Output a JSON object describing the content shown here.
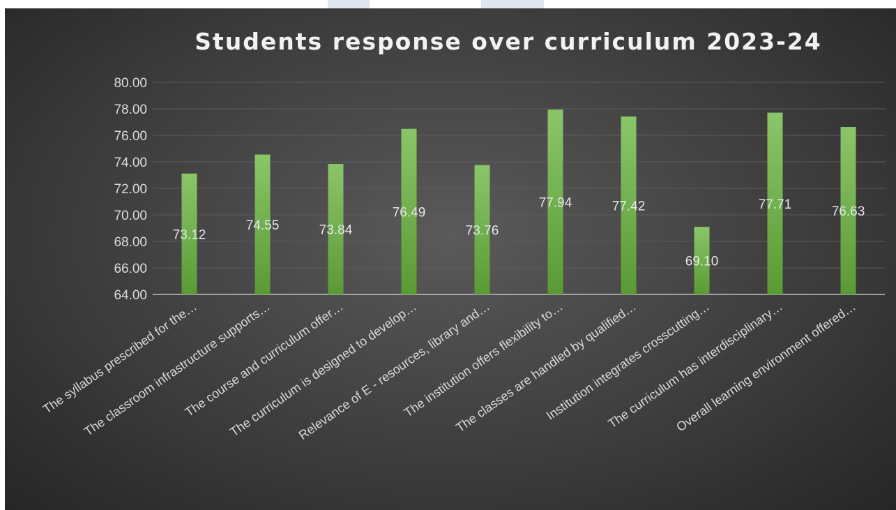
{
  "chart_data": {
    "type": "bar",
    "title": "Students response over curriculum 2023-24",
    "categories": [
      "The syllabus prescribed for the…",
      "The classroom infrastructure supports…",
      "The course and curriculum offer…",
      "The curriculum is designed to develop…",
      "Relevance of E - resources, library and…",
      "The institution offers flexibility to…",
      "The classes are handled by qualified…",
      "Institution integrates crosscutting…",
      "The curriculum has interdisciplinary…",
      "Overall learning environment offered…"
    ],
    "values": [
      73.12,
      74.55,
      73.84,
      76.49,
      73.76,
      77.94,
      77.42,
      69.1,
      77.71,
      76.63
    ],
    "value_labels": [
      "73.12",
      "74.55",
      "73.84",
      "76.49",
      "73.76",
      "77.94",
      "77.42",
      "69.10",
      "77.71",
      "76.63"
    ],
    "ylim": [
      64,
      80
    ],
    "yticks": [
      "64.00",
      "66.00",
      "68.00",
      "70.00",
      "72.00",
      "74.00",
      "76.00",
      "78.00",
      "80.00"
    ],
    "xlabel": "",
    "ylabel": "",
    "grid": true,
    "legend": "none",
    "colors": {
      "bar_light": "#8bc56a",
      "bar_dark": "#5a9a35",
      "gridline": "#5c5c5c",
      "axis_line": "#bfbfbf",
      "text": "#d9d9d9"
    }
  }
}
